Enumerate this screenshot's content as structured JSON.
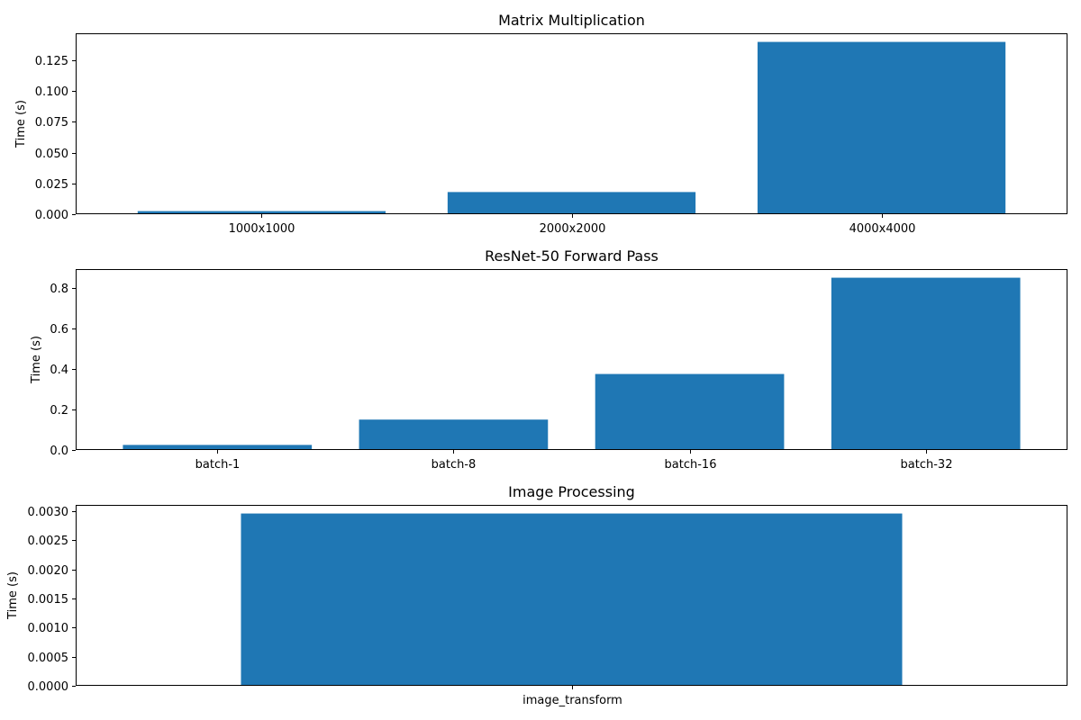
{
  "colors": {
    "bar": "#1f77b4"
  },
  "chart_data": [
    {
      "type": "bar",
      "title": "Matrix Multiplication",
      "xlabel": "",
      "ylabel": "Time (s)",
      "categories": [
        "1000x1000",
        "2000x2000",
        "4000x4000"
      ],
      "values": [
        0.0025,
        0.018,
        0.14
      ],
      "ylim": [
        0,
        0.147
      ],
      "yticks": [
        0,
        0.025,
        0.05,
        0.075,
        0.1,
        0.125
      ],
      "ytick_labels": [
        "0.000",
        "0.025",
        "0.050",
        "0.075",
        "0.100",
        "0.125"
      ]
    },
    {
      "type": "bar",
      "title": "ResNet-50 Forward Pass",
      "xlabel": "",
      "ylabel": "Time (s)",
      "categories": [
        "batch-1",
        "batch-8",
        "batch-16",
        "batch-32"
      ],
      "values": [
        0.025,
        0.15,
        0.375,
        0.85
      ],
      "ylim": [
        0,
        0.8925
      ],
      "yticks": [
        0,
        0.2,
        0.4,
        0.6,
        0.8
      ],
      "ytick_labels": [
        "0.0",
        "0.2",
        "0.4",
        "0.6",
        "0.8"
      ]
    },
    {
      "type": "bar",
      "title": "Image Processing",
      "xlabel": "",
      "ylabel": "Time (s)",
      "categories": [
        "image_transform"
      ],
      "values": [
        0.00296
      ],
      "ylim": [
        0,
        0.003108
      ],
      "yticks": [
        0,
        0.0005,
        0.001,
        0.0015,
        0.002,
        0.0025,
        0.003
      ],
      "ytick_labels": [
        "0.0000",
        "0.0005",
        "0.0010",
        "0.0015",
        "0.0020",
        "0.0025",
        "0.0030"
      ]
    }
  ]
}
